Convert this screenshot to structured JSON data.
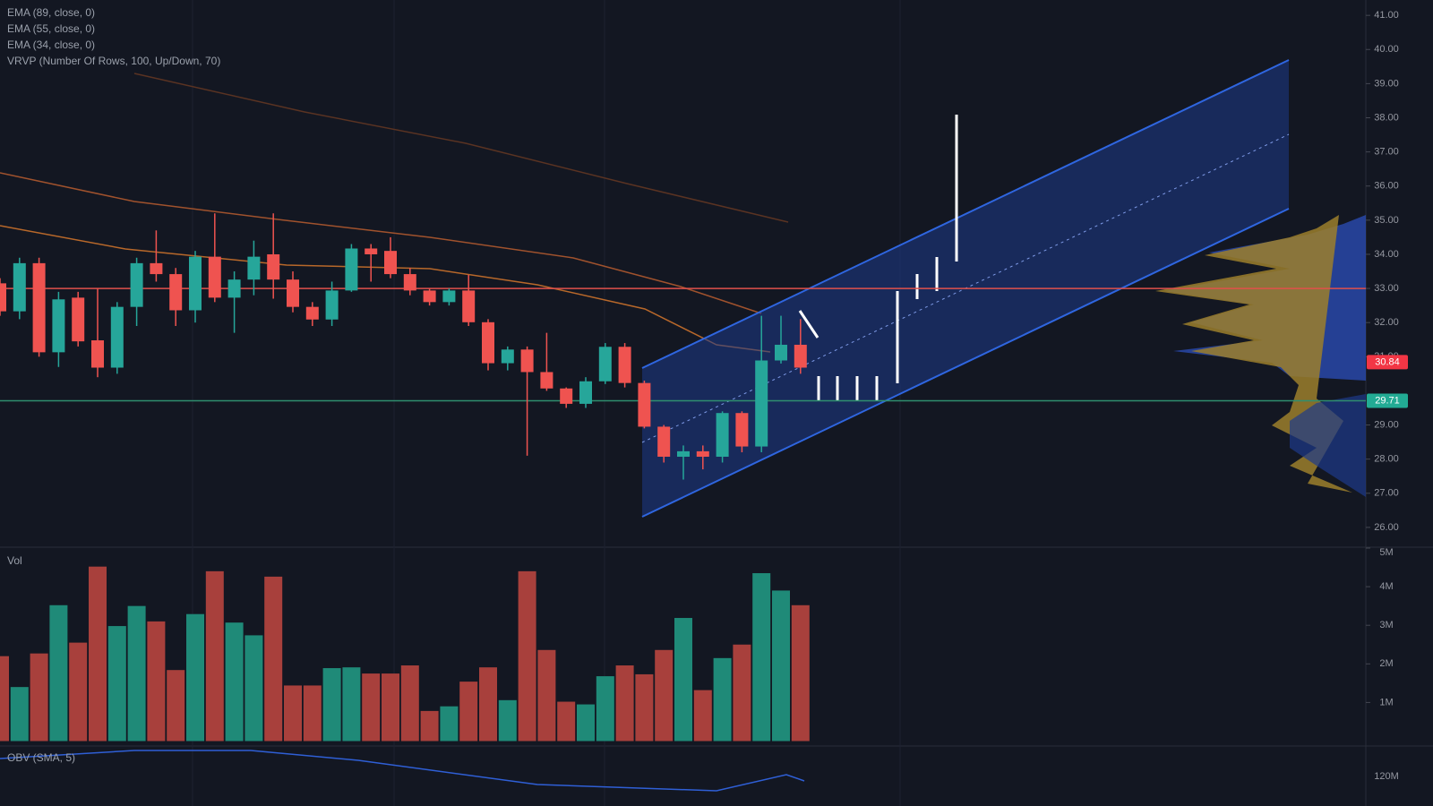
{
  "chart_data": {
    "type": "candlestick",
    "legend": [
      "EMA (89, close, 0)",
      "EMA (55, close, 0)",
      "EMA (34, close, 0)",
      "VRVP (Number Of Rows, 100, Up/Down, 70)"
    ],
    "up_color": "#26a69a",
    "down_color": "#ef5350",
    "ylim": [
      25.42,
      41.45
    ],
    "yticks": [
      {
        "value": 41,
        "label": "41.00"
      },
      {
        "value": 40,
        "label": "40.00"
      },
      {
        "value": 39,
        "label": "39.00"
      },
      {
        "value": 38,
        "label": "38.00"
      },
      {
        "value": 37,
        "label": "37.00"
      },
      {
        "value": 36,
        "label": "36.00"
      },
      {
        "value": 35,
        "label": "35.00"
      },
      {
        "value": 34,
        "label": "34.00"
      },
      {
        "value": 33,
        "label": "33.00"
      },
      {
        "value": 32,
        "label": "32.00"
      },
      {
        "value": 31,
        "label": "31.00"
      },
      {
        "value": 29,
        "label": "29.00"
      },
      {
        "value": 28,
        "label": "28.00"
      },
      {
        "value": 27,
        "label": "27.00"
      },
      {
        "value": 26,
        "label": "26.00"
      }
    ],
    "hlines": [
      {
        "value": 33,
        "color": "#e0514b"
      },
      {
        "value": 29.71,
        "color": "#2f8f6f"
      }
    ],
    "price_labels": [
      {
        "value": 30.84,
        "label": "30.84",
        "color": "#f23645"
      },
      {
        "value": 29.71,
        "label": "29.71",
        "color": "#22ab94"
      }
    ],
    "open": [
      33.15,
      32.33,
      33.74,
      31.13,
      32.73,
      31.48,
      30.68,
      32.46,
      33.74,
      33.42,
      32.36,
      33.93,
      32.73,
      33.26,
      34.0,
      33.26,
      32.46,
      32.09,
      32.94,
      34.17,
      34.1,
      33.42,
      32.94,
      32.6,
      32.94,
      32.01,
      30.81,
      31.21,
      30.55,
      30.07,
      29.62,
      30.28,
      31.29,
      30.23,
      28.95,
      28.07,
      28.23,
      28.07,
      29.35,
      28.37,
      30.89,
      31.35
    ],
    "high": [
      33.3,
      33.9,
      33.9,
      32.9,
      32.9,
      33.0,
      32.6,
      33.9,
      34.7,
      33.6,
      34.1,
      35.2,
      33.5,
      34.4,
      35.2,
      33.5,
      32.6,
      33.2,
      34.3,
      34.3,
      34.5,
      33.6,
      33.0,
      33.0,
      33.4,
      32.1,
      31.3,
      31.3,
      31.7,
      30.1,
      30.4,
      31.4,
      31.4,
      30.3,
      29.0,
      28.4,
      28.4,
      29.4,
      29.4,
      32.2,
      32.2,
      32.1
    ],
    "low": [
      32.2,
      32.1,
      31.0,
      30.7,
      31.3,
      30.4,
      30.5,
      31.9,
      33.2,
      31.9,
      32.0,
      32.6,
      31.7,
      32.8,
      32.7,
      32.3,
      31.9,
      31.9,
      32.9,
      33.2,
      33.3,
      32.8,
      32.5,
      32.5,
      31.9,
      30.6,
      30.6,
      28.1,
      30.0,
      29.5,
      29.5,
      30.2,
      30.1,
      28.9,
      27.9,
      27.4,
      27.7,
      27.9,
      28.2,
      28.2,
      30.8,
      30.5
    ],
    "close": [
      32.33,
      33.74,
      31.13,
      32.68,
      31.45,
      30.68,
      32.46,
      33.74,
      33.42,
      32.36,
      33.93,
      32.73,
      33.26,
      33.93,
      33.26,
      32.46,
      32.09,
      32.94,
      34.17,
      34.0,
      33.42,
      32.94,
      32.6,
      32.94,
      32.01,
      30.81,
      31.21,
      30.55,
      30.07,
      29.62,
      30.28,
      31.29,
      30.23,
      28.95,
      28.07,
      28.23,
      28.07,
      29.35,
      28.37,
      30.89,
      31.35,
      30.68
    ],
    "volume": {
      "title": "Vol",
      "up_color": "#1f8a78",
      "down_color": "#a8403c",
      "ylim": [
        0,
        5000000
      ],
      "yticks": [
        {
          "value": 1000000,
          "label": "1M"
        },
        {
          "value": 2000000,
          "label": "2M"
        },
        {
          "value": 3000000,
          "label": "3M"
        },
        {
          "value": 4000000,
          "label": "4M"
        },
        {
          "value": 5000000,
          "label": "5M"
        }
      ],
      "values": [
        2200000,
        1400000,
        2270000,
        3520000,
        2550000,
        4520000,
        2980000,
        3500000,
        3100000,
        1840000,
        3290000,
        4400000,
        3070000,
        2740000,
        4260000,
        1440000,
        1440000,
        1890000,
        1910000,
        1750000,
        1750000,
        1960000,
        780000,
        900000,
        1540000,
        1910000,
        1060000,
        4400000,
        2360000,
        1020000,
        950000,
        1680000,
        1960000,
        1730000,
        2360000,
        3190000,
        1320000,
        2150000,
        2500000,
        4350000,
        3900000,
        3520000
      ]
    },
    "obv": {
      "title": "OBV (SMA, 5)",
      "yticks": [
        {
          "value": 120000000,
          "label": "120M"
        }
      ]
    }
  }
}
